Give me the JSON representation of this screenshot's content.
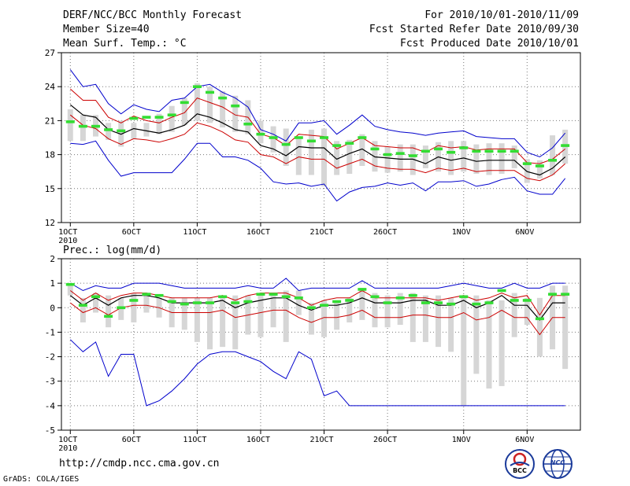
{
  "header": {
    "title": "DERF/NCC/BCC Monthly Forecast",
    "member_size": "Member Size=40",
    "variable_temp": "Mean Surf. Temp.: °C",
    "forecast_period": "For 2010/10/01-2010/11/09",
    "fcst_started": "Fcst Started Refer Date 2010/09/30",
    "fcst_produced": "Fcst Produced Date 2010/10/01"
  },
  "footer": {
    "url": "http://cmdp.ncc.cma.gov.cn",
    "grads": "GrADS: COLA/IGES"
  },
  "logos": {
    "left": "BCC",
    "right": "NCC"
  },
  "colors": {
    "outer": "#0000cc",
    "inner": "#cc0000",
    "mean": "#000000",
    "obs": "#33dd33",
    "spread": "#d6d6d6"
  },
  "chart_data": [
    {
      "type": "line",
      "title": "Mean Surf. Temp.: °C",
      "ylim": [
        12,
        27
      ],
      "yticks": [
        "12",
        "15",
        "18",
        "21",
        "24",
        "27"
      ],
      "xticks": [
        {
          "day": 1,
          "label": "1OCT",
          "sub": "2010"
        },
        {
          "day": 6,
          "label": "6OCT"
        },
        {
          "day": 11,
          "label": "11OCT"
        },
        {
          "day": 16,
          "label": "16OCT"
        },
        {
          "day": 21,
          "label": "21OCT"
        },
        {
          "day": 26,
          "label": "26OCT"
        },
        {
          "day": 32,
          "label": "1NOV"
        },
        {
          "day": 37,
          "label": "6NOV"
        }
      ],
      "x": [
        1,
        2,
        3,
        4,
        5,
        6,
        7,
        8,
        9,
        10,
        11,
        12,
        13,
        14,
        15,
        16,
        17,
        18,
        19,
        20,
        21,
        22,
        23,
        24,
        25,
        26,
        27,
        28,
        29,
        30,
        31,
        32,
        33,
        34,
        35,
        36,
        37,
        38,
        39,
        40
      ],
      "series": [
        {
          "name": "max",
          "color": "#0000cc",
          "values": [
            25.5,
            24,
            24.2,
            22.5,
            21.6,
            22.4,
            22,
            21.8,
            22.8,
            23,
            24,
            24.2,
            23.5,
            23,
            22.2,
            20.2,
            19.8,
            19.2,
            20.8,
            20.8,
            21,
            19.8,
            20.6,
            21.5,
            20.5,
            20.2,
            20,
            19.9,
            19.7,
            19.9,
            20,
            20.1,
            19.6,
            19.5,
            19.4,
            19.4,
            18.2,
            17.8,
            18.6,
            19.9
          ]
        },
        {
          "name": "upper",
          "color": "#cc0000",
          "values": [
            23.8,
            22.8,
            22.8,
            21.3,
            20.8,
            21.4,
            21,
            20.8,
            21.3,
            21.7,
            23,
            22.6,
            22.2,
            21.5,
            21.3,
            19.8,
            19.5,
            18.8,
            19.8,
            19.7,
            19.6,
            18.5,
            19,
            19.5,
            18.8,
            18.7,
            18.6,
            18.6,
            18.2,
            18.8,
            18.6,
            18.7,
            18.4,
            18.5,
            18.5,
            18.5,
            17.3,
            17.2,
            17.6,
            18.5
          ]
        },
        {
          "name": "mean",
          "color": "#000000",
          "values": [
            22.4,
            21.5,
            21.3,
            20.2,
            19.8,
            20.3,
            20.1,
            19.9,
            20.2,
            20.6,
            21.6,
            21.3,
            20.8,
            20.2,
            20,
            18.8,
            18.5,
            17.9,
            18.7,
            18.6,
            18.6,
            17.6,
            18.1,
            18.5,
            17.8,
            17.7,
            17.6,
            17.6,
            17.2,
            17.8,
            17.5,
            17.7,
            17.4,
            17.5,
            17.5,
            17.5,
            16.5,
            16.2,
            16.8,
            17.8
          ]
        },
        {
          "name": "lower",
          "color": "#cc0000",
          "values": [
            21.5,
            20.6,
            20.3,
            19.4,
            18.9,
            19.4,
            19.3,
            19.1,
            19.4,
            19.8,
            20.8,
            20.5,
            20,
            19.3,
            19.1,
            18,
            17.8,
            17.2,
            17.8,
            17.6,
            17.6,
            16.8,
            17.2,
            17.6,
            17,
            16.8,
            16.7,
            16.7,
            16.4,
            16.8,
            16.6,
            16.8,
            16.5,
            16.6,
            16.6,
            16.6,
            15.9,
            15.7,
            16.2,
            17.2
          ]
        },
        {
          "name": "min",
          "color": "#0000cc",
          "values": [
            19,
            18.9,
            19.2,
            17.5,
            16.1,
            16.4,
            16.4,
            16.4,
            16.4,
            17.6,
            19,
            19,
            17.8,
            17.8,
            17.5,
            16.8,
            15.6,
            15.4,
            15.5,
            15.2,
            15.4,
            13.9,
            14.7,
            15.1,
            15.2,
            15.5,
            15.3,
            15.5,
            14.8,
            15.6,
            15.6,
            15.7,
            15.2,
            15.4,
            15.8,
            16,
            14.8,
            14.5,
            14.5,
            15.9
          ]
        }
      ],
      "spread_bars": [
        [
          19.2,
          22
        ],
        [
          19.2,
          21.5
        ],
        [
          19.6,
          21.5
        ],
        [
          19.3,
          20.8
        ],
        [
          18.7,
          21
        ],
        [
          19.4,
          20.8
        ],
        [
          19.6,
          20.8
        ],
        [
          19.8,
          21.6
        ],
        [
          20,
          22.3
        ],
        [
          20.6,
          23
        ],
        [
          21,
          24.3
        ],
        [
          20.8,
          24
        ],
        [
          20.4,
          23.6
        ],
        [
          20,
          23.2
        ],
        [
          19.8,
          22.8
        ],
        [
          19,
          21
        ],
        [
          18.2,
          20.5
        ],
        [
          17,
          20.3
        ],
        [
          16.2,
          19.5
        ],
        [
          16.2,
          20.2
        ],
        [
          15.2,
          20.3
        ],
        [
          16.2,
          19.2
        ],
        [
          16.3,
          19.3
        ],
        [
          17,
          19.8
        ],
        [
          16.5,
          19.2
        ],
        [
          16.4,
          18.7
        ],
        [
          16.5,
          18.9
        ],
        [
          16.2,
          18.9
        ],
        [
          16.8,
          18.8
        ],
        [
          16.5,
          19.1
        ],
        [
          16.2,
          19.2
        ],
        [
          16.5,
          19.2
        ],
        [
          16.3,
          18.9
        ],
        [
          16.2,
          19
        ],
        [
          16.3,
          19
        ],
        [
          16.8,
          18.8
        ],
        [
          15.5,
          17.6
        ],
        [
          15.9,
          17.5
        ],
        [
          16.2,
          19.7
        ],
        [
          17.2,
          20.2
        ]
      ],
      "observed": [
        20.9,
        20.5,
        20.5,
        20.2,
        20.1,
        21.2,
        21.3,
        21.3,
        21.5,
        22.6,
        24,
        23.5,
        23,
        22.3,
        20.7,
        19.8,
        19.5,
        18.9,
        19.5,
        19.2,
        19.5,
        18.8,
        19,
        19.5,
        18.5,
        18,
        18.1,
        17.9,
        18.3,
        18.5,
        18.2,
        18.6,
        18.3,
        18.3,
        18.3,
        18.3,
        17.2,
        17,
        17.5,
        18.8
      ]
    },
    {
      "type": "line",
      "title": "Prec.: log(mm/d)",
      "ylim": [
        -5,
        2
      ],
      "yticks": [
        "-5",
        "-4",
        "-3",
        "-2",
        "-1",
        "0",
        "1",
        "2"
      ],
      "xticks": [
        {
          "day": 1,
          "label": "1OCT",
          "sub": "2010"
        },
        {
          "day": 6,
          "label": "6OCT"
        },
        {
          "day": 11,
          "label": "11OCT"
        },
        {
          "day": 16,
          "label": "16OCT"
        },
        {
          "day": 21,
          "label": "21OCT"
        },
        {
          "day": 26,
          "label": "26OCT"
        },
        {
          "day": 32,
          "label": "1NOV"
        },
        {
          "day": 37,
          "label": "6NOV"
        }
      ],
      "x": [
        1,
        2,
        3,
        4,
        5,
        6,
        7,
        8,
        9,
        10,
        11,
        12,
        13,
        14,
        15,
        16,
        17,
        18,
        19,
        20,
        21,
        22,
        23,
        24,
        25,
        26,
        27,
        28,
        29,
        30,
        31,
        32,
        33,
        34,
        35,
        36,
        37,
        38,
        39,
        40
      ],
      "series": [
        {
          "name": "max",
          "color": "#0000cc",
          "values": [
            1,
            0.7,
            0.9,
            0.8,
            0.8,
            1,
            1,
            1,
            0.9,
            0.8,
            0.8,
            0.8,
            0.8,
            0.8,
            0.9,
            0.8,
            0.8,
            1.2,
            0.7,
            0.8,
            0.8,
            0.8,
            0.8,
            1.1,
            0.8,
            0.8,
            0.8,
            0.8,
            0.8,
            0.8,
            0.9,
            1,
            0.9,
            0.8,
            0.8,
            1,
            0.8,
            0.8,
            1,
            1
          ]
        },
        {
          "name": "upper",
          "color": "#cc0000",
          "values": [
            0.7,
            0.3,
            0.6,
            0.3,
            0.5,
            0.6,
            0.6,
            0.5,
            0.4,
            0.4,
            0.4,
            0.4,
            0.5,
            0.3,
            0.5,
            0.6,
            0.6,
            0.6,
            0.4,
            0.1,
            0.3,
            0.4,
            0.4,
            0.7,
            0.4,
            0.4,
            0.4,
            0.4,
            0.4,
            0.3,
            0.4,
            0.5,
            0.3,
            0.4,
            0.6,
            0.4,
            0.5,
            -0.3,
            0.5,
            0.5
          ]
        },
        {
          "name": "mean",
          "color": "#000000",
          "values": [
            0.5,
            0.1,
            0.4,
            0.1,
            0.4,
            0.5,
            0.5,
            0.4,
            0.2,
            0.2,
            0.2,
            0.2,
            0.3,
            0,
            0.2,
            0.3,
            0.4,
            0.4,
            0.1,
            -0.1,
            0.1,
            0.1,
            0.2,
            0.4,
            0.2,
            0.2,
            0.2,
            0.3,
            0.3,
            0.1,
            0.1,
            0.3,
            0,
            0.2,
            0.5,
            0.1,
            0.1,
            -0.5,
            0.2,
            0.2
          ]
        },
        {
          "name": "lower",
          "color": "#cc0000",
          "values": [
            0.2,
            -0.2,
            0,
            -0.3,
            0,
            0.1,
            0.1,
            0,
            -0.2,
            -0.2,
            -0.2,
            -0.2,
            -0.1,
            -0.4,
            -0.3,
            -0.2,
            -0.1,
            -0.1,
            -0.4,
            -0.6,
            -0.4,
            -0.4,
            -0.3,
            -0.1,
            -0.4,
            -0.4,
            -0.4,
            -0.3,
            -0.3,
            -0.4,
            -0.4,
            -0.2,
            -0.5,
            -0.4,
            -0.1,
            -0.4,
            -0.4,
            -1.1,
            -0.4,
            -0.4
          ]
        },
        {
          "name": "min",
          "color": "#0000cc",
          "values": [
            -1.3,
            -1.8,
            -1.4,
            -2.8,
            -1.9,
            -1.9,
            -4,
            -3.8,
            -3.4,
            -2.9,
            -2.3,
            -1.9,
            -1.8,
            -1.8,
            -2,
            -2.2,
            -2.6,
            -2.9,
            -1.8,
            -2.1,
            -3.6,
            -3.4,
            -4,
            -4,
            -4,
            -4,
            -4,
            -4,
            -4,
            -4,
            -4,
            -4,
            -4,
            -4,
            -4,
            -4,
            -4,
            -4,
            -4,
            -4
          ]
        }
      ],
      "spread_bars": [
        [
          0.5,
          1
        ],
        [
          -0.6,
          0.4
        ],
        [
          -0.2,
          0.6
        ],
        [
          -0.8,
          0.5
        ],
        [
          -0.5,
          0.4
        ],
        [
          -0.6,
          0.6
        ],
        [
          -0.2,
          0.5
        ],
        [
          -0.4,
          0.4
        ],
        [
          -0.8,
          0.4
        ],
        [
          -0.9,
          0.4
        ],
        [
          -1.4,
          0.4
        ],
        [
          -1.7,
          0.4
        ],
        [
          -1.6,
          0.4
        ],
        [
          -1.7,
          0.5
        ],
        [
          -1.1,
          0.5
        ],
        [
          -1.2,
          0.6
        ],
        [
          -0.8,
          0.5
        ],
        [
          -1.4,
          0.7
        ],
        [
          -0.3,
          0.7
        ],
        [
          -1.1,
          0.2
        ],
        [
          -1.2,
          0.3
        ],
        [
          -0.9,
          0.3
        ],
        [
          -0.6,
          0.4
        ],
        [
          -0.5,
          0.8
        ],
        [
          -0.8,
          0.6
        ],
        [
          -0.8,
          0.5
        ],
        [
          -0.7,
          0.6
        ],
        [
          -1.4,
          0.6
        ],
        [
          -1.4,
          0.5
        ],
        [
          -1.6,
          0.5
        ],
        [
          -1.8,
          0.4
        ],
        [
          -4,
          0.5
        ],
        [
          -2.7,
          0.5
        ],
        [
          -3.3,
          0.3
        ],
        [
          -3.2,
          0.3
        ],
        [
          -1.2,
          0.6
        ],
        [
          -0.7,
          0.4
        ],
        [
          -2,
          0.4
        ],
        [
          -1.7,
          0.9
        ],
        [
          -2.5,
          0.9
        ]
      ],
      "observed": [
        0.95,
        0.1,
        0.45,
        -0.35,
        0,
        0.3,
        0.55,
        0.5,
        0.25,
        0.15,
        0.2,
        0.2,
        0.45,
        0.2,
        0.25,
        0.55,
        0.55,
        0.45,
        0.4,
        0,
        0.1,
        0.25,
        0.3,
        0.75,
        0.45,
        0.2,
        0.4,
        0.5,
        0.2,
        0.2,
        0.15,
        0.45,
        0.15,
        0.2,
        0.7,
        0.3,
        0.3,
        -0.45,
        0.55,
        0.55
      ]
    }
  ]
}
